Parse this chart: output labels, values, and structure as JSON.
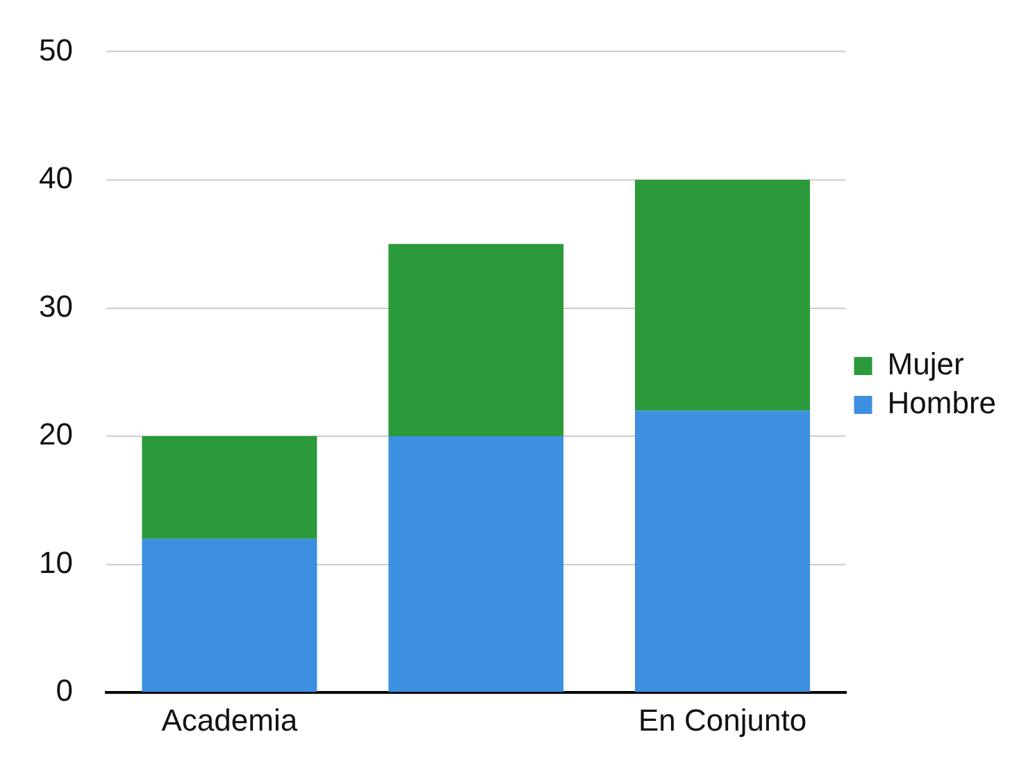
{
  "chart_data": {
    "type": "bar",
    "stacked": true,
    "categories": [
      "Academia",
      null,
      "En Conjunto"
    ],
    "series": [
      {
        "name": "Hombre",
        "color": "#3d8fe0",
        "values": [
          12,
          20,
          22
        ]
      },
      {
        "name": "Mujer",
        "color": "#2a9a3a",
        "values": [
          8,
          15,
          18
        ]
      }
    ],
    "ylim": [
      0,
      50
    ],
    "yticks": [
      0,
      10,
      20,
      30,
      40,
      50
    ],
    "grid": "y",
    "legend": "right"
  }
}
